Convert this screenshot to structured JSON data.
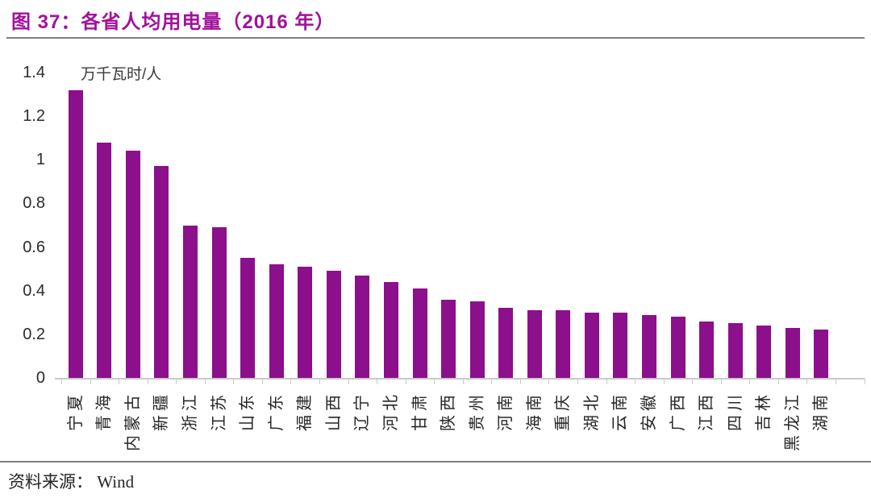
{
  "header": {
    "title": "图 37：各省人均用电量（2016 年）"
  },
  "footer": {
    "source": "资料来源： Wind"
  },
  "colors": {
    "bar": "#8C0F8C",
    "title": "#A1119B",
    "axis_line": "#C9C9C9",
    "label_text": "#262626",
    "divider": "#7F7F7F"
  },
  "chart_data": {
    "type": "bar",
    "title": "各省人均用电量（2016 年）",
    "unit_label": "万千瓦时/人",
    "xlabel": "",
    "ylabel": "万千瓦时/人",
    "ylim": [
      0,
      1.4
    ],
    "yticks": [
      0,
      0.2,
      0.4,
      0.6,
      0.8,
      1,
      1.2,
      1.4
    ],
    "ytick_labels": [
      "0",
      "0.2",
      "0.4",
      "0.6",
      "0.8",
      "1",
      "1.2",
      "1.4"
    ],
    "grid": false,
    "legend_position": "none",
    "bar_color": "#8C0F8C",
    "categories": [
      "宁夏",
      "青海",
      "内蒙古",
      "新疆",
      "浙江",
      "江苏",
      "山东",
      "广东",
      "福建",
      "山西",
      "辽宁",
      "河北",
      "甘肃",
      "陕西",
      "贵州",
      "河南",
      "海南",
      "重庆",
      "湖北",
      "云南",
      "安徽",
      "广西",
      "江西",
      "四川",
      "吉林",
      "黑龙江",
      "湖南"
    ],
    "values": [
      1.32,
      1.08,
      1.04,
      0.97,
      0.7,
      0.69,
      0.55,
      0.52,
      0.51,
      0.49,
      0.47,
      0.44,
      0.41,
      0.36,
      0.35,
      0.32,
      0.31,
      0.31,
      0.3,
      0.3,
      0.29,
      0.28,
      0.26,
      0.25,
      0.24,
      0.23,
      0.22
    ]
  }
}
